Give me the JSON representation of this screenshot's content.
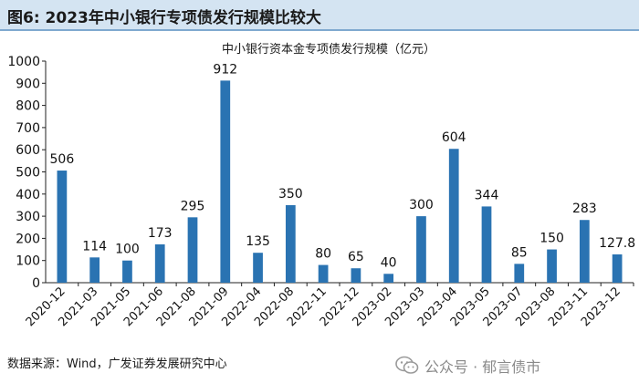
{
  "figure": {
    "title": "图6: 2023年中小银行专项债发行规模比较大",
    "source": "数据来源：Wind，广发证券发展研究中心"
  },
  "watermark": {
    "text": "公众号 · 郁言债市",
    "icon": "wechat-icon",
    "color": "#8a8a8a"
  },
  "colors": {
    "bar": "#2a73b2",
    "header_bg": "#d4e4f2",
    "header_border": "#7fa9cf"
  },
  "chart_data": {
    "type": "bar",
    "title": "中小银行资本金专项债发行规模（亿元）",
    "xlabel": "",
    "ylabel": "",
    "ylim": [
      0,
      1000
    ],
    "yticks": [
      0,
      100,
      200,
      300,
      400,
      500,
      600,
      700,
      800,
      900,
      1000
    ],
    "grid": false,
    "categories": [
      "2020-12",
      "2021-03",
      "2021-05",
      "2021-06",
      "2021-08",
      "2021-09",
      "2022-04",
      "2022-08",
      "2022-11",
      "2022-12",
      "2023-02",
      "2023-03",
      "2023-04",
      "2023-05",
      "2023-07",
      "2023-08",
      "2023-11",
      "2023-12"
    ],
    "values": [
      506,
      114,
      100,
      173,
      295,
      912,
      135,
      350,
      80,
      65,
      40,
      300,
      604,
      344,
      85,
      150,
      283,
      127.8
    ],
    "data_labels": [
      "506",
      "114",
      "100",
      "173",
      "295",
      "912",
      "135",
      "350",
      "80",
      "65",
      "40",
      "300",
      "604",
      "344",
      "85",
      "150",
      "283",
      "127.8"
    ]
  }
}
